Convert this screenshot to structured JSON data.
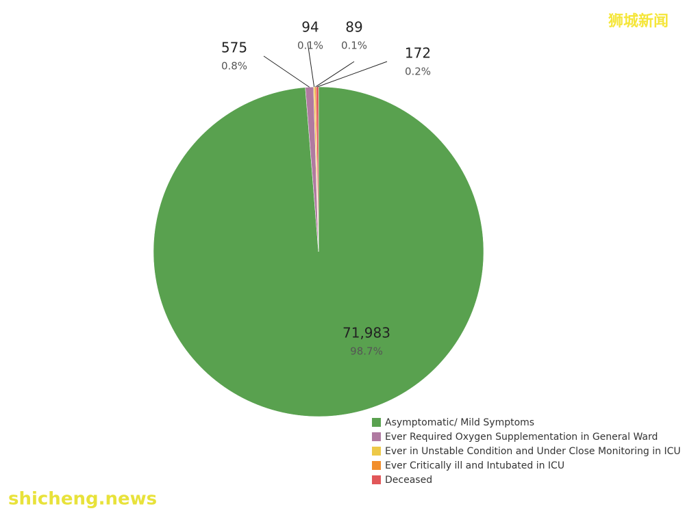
{
  "chart_data": {
    "type": "pie",
    "categories": [
      "Asymptomatic/ Mild Symptoms",
      "Ever Required Oxygen Supplementation in General Ward",
      "Ever in Unstable Condition and Under Close Monitoring in ICU",
      "Ever Critically ill and Intubated in ICU",
      "Deceased"
    ],
    "values": [
      71983,
      575,
      94,
      89,
      172
    ],
    "value_labels": [
      "71,983",
      "575",
      "94",
      "89",
      "172"
    ],
    "percentages": [
      98.7,
      0.8,
      0.1,
      0.1,
      0.2
    ],
    "percentage_labels": [
      "98.7%",
      "0.8%",
      "0.1%",
      "0.1%",
      "0.2%"
    ],
    "colors": [
      "#59a14f",
      "#b07aa1",
      "#edc948",
      "#f28e2b",
      "#e15759"
    ],
    "legend": "bottom-right"
  },
  "watermarks": [
    "狮城新闻",
    "shicheng.news"
  ]
}
